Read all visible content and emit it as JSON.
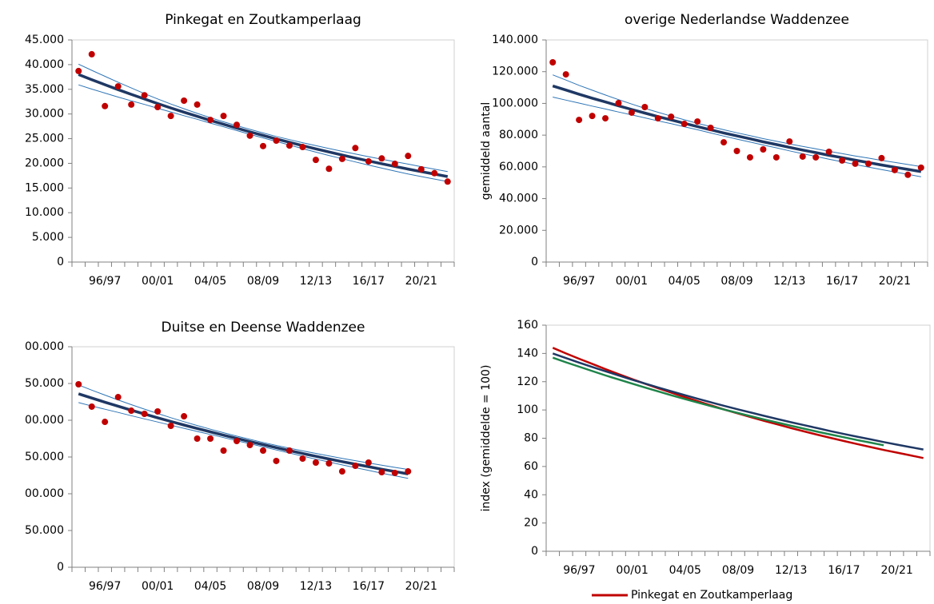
{
  "chart_data": [
    {
      "type": "line",
      "title": "Pinkegat en Zoutkamperlaag",
      "categories": [
        null,
        null,
        "96/97",
        null,
        null,
        null,
        "00/01",
        null,
        null,
        null,
        "04/05",
        null,
        null,
        null,
        "08/09",
        null,
        null,
        null,
        "12/13",
        null,
        null,
        null,
        "16/17",
        null,
        null,
        null,
        "20/21",
        null,
        null
      ],
      "ylim": [
        0,
        45000
      ],
      "yticks": [
        0,
        {
          "value": 5000,
          "label": "5.000"
        },
        {
          "value": 10000,
          "label": "10.000"
        },
        {
          "value": 15000,
          "label": "15.000"
        },
        {
          "value": 20000,
          "label": "20.000"
        },
        {
          "value": 25000,
          "label": "25.000"
        },
        {
          "value": 30000,
          "label": "30.000"
        },
        {
          "value": 35000,
          "label": "35.000"
        },
        {
          "value": 40000,
          "label": "40.000"
        },
        {
          "value": 45000,
          "label": "45.000"
        }
      ],
      "series": [
        {
          "color": "#2e75b6",
          "line_width": 1,
          "values": [
            40100,
            38850,
            37630,
            36430,
            35270,
            34130,
            33060,
            32020,
            31060,
            30120,
            29250,
            28410,
            27640,
            26890,
            26160,
            25450,
            24810,
            24190,
            23580,
            23000,
            22430,
            21880,
            21350,
            20830,
            20330,
            19840,
            19320,
            18820,
            18320
          ]
        },
        {
          "color": "#2e75b6",
          "line_width": 1,
          "values": [
            35900,
            35050,
            34230,
            33430,
            32670,
            31930,
            31160,
            30420,
            29660,
            28920,
            28150,
            27410,
            26640,
            25890,
            25160,
            24450,
            23710,
            22990,
            22280,
            21600,
            20930,
            20280,
            19650,
            19030,
            18430,
            17840,
            17320,
            16820,
            16320
          ]
        },
        {
          "color": "#1f3864",
          "line_width": 3.5,
          "values": [
            38000,
            36950,
            35930,
            34930,
            33970,
            33030,
            32110,
            31220,
            30360,
            29520,
            28700,
            27910,
            27140,
            26390,
            25660,
            24950,
            24260,
            23590,
            22930,
            22300,
            21680,
            21080,
            20500,
            19930,
            19380,
            18840,
            18320,
            17820,
            17320
          ]
        },
        {
          "color": "#c00000",
          "mode": "markers",
          "values": [
            38700,
            42100,
            31600,
            35600,
            31900,
            33800,
            31400,
            29600,
            32700,
            31900,
            28800,
            29600,
            27800,
            25600,
            23500,
            24600,
            23600,
            23300,
            20700,
            18900,
            20900,
            23100,
            20400,
            21000,
            19900,
            21500,
            18800,
            18000,
            16300
          ]
        }
      ]
    },
    {
      "type": "line",
      "title": "overige Nederlandse Waddenzee",
      "ylabel": "gemiddeld aantal",
      "categories": [
        null,
        null,
        "96/97",
        null,
        null,
        null,
        "00/01",
        null,
        null,
        null,
        "04/05",
        null,
        null,
        null,
        "08/09",
        null,
        null,
        null,
        "12/13",
        null,
        null,
        null,
        "16/17",
        null,
        null,
        null,
        "20/21",
        null,
        null
      ],
      "ylim": [
        0,
        140000
      ],
      "yticks": [
        0,
        {
          "value": 20000,
          "label": "20.000"
        },
        {
          "value": 40000,
          "label": "40.000"
        },
        {
          "value": 60000,
          "label": "60.000"
        },
        {
          "value": 80000,
          "label": "80.000"
        },
        {
          "value": 100000,
          "label": "100.000"
        },
        {
          "value": 120000,
          "label": "120.000"
        },
        {
          "value": 140000,
          "label": "140.000"
        }
      ],
      "series": [
        {
          "color": "#2e75b6",
          "line_width": 1,
          "values": [
            118000,
            114700,
            111400,
            108300,
            105300,
            102400,
            99600,
            96900,
            94400,
            92000,
            89700,
            87400,
            85400,
            83400,
            81500,
            79700,
            77800,
            76200,
            74500,
            72900,
            71400,
            69800,
            68400,
            66900,
            65500,
            64100,
            62800,
            61500,
            60200
          ]
        },
        {
          "color": "#2e75b6",
          "line_width": 1,
          "values": [
            104000,
            102100,
            100200,
            98300,
            96500,
            94600,
            92800,
            90900,
            89000,
            87200,
            85300,
            83400,
            81400,
            79400,
            77500,
            75700,
            73800,
            72000,
            70100,
            68300,
            66600,
            64800,
            63200,
            61500,
            59900,
            58300,
            56800,
            55300,
            53800
          ]
        },
        {
          "color": "#1f3864",
          "line_width": 3.5,
          "values": [
            111000,
            108400,
            105800,
            103300,
            100900,
            98500,
            96200,
            93900,
            91700,
            89600,
            87500,
            85400,
            83400,
            81400,
            79500,
            77700,
            75800,
            74100,
            72300,
            70600,
            69000,
            67300,
            65800,
            64200,
            62700,
            61200,
            59800,
            58400,
            57000
          ]
        },
        {
          "color": "#c00000",
          "mode": "markers",
          "values": [
            125900,
            118300,
            89600,
            92100,
            90600,
            100200,
            94200,
            97700,
            90600,
            91600,
            87100,
            88600,
            84600,
            75500,
            70000,
            66000,
            71000,
            66000,
            76000,
            66500,
            66000,
            69500,
            64000,
            62000,
            62000,
            65500,
            58000,
            55000,
            59500
          ]
        }
      ]
    },
    {
      "type": "line",
      "title": "Duitse en Deense Waddenzee",
      "categories": [
        null,
        null,
        "96/97",
        null,
        null,
        null,
        "00/01",
        null,
        null,
        null,
        "04/05",
        null,
        null,
        null,
        "08/09",
        null,
        null,
        null,
        "12/13",
        null,
        null,
        null,
        "16/17",
        null,
        null,
        null,
        "20/21",
        null,
        null
      ],
      "ylim": [
        0,
        300000
      ],
      "yticks": [
        0,
        {
          "value": 50000,
          "label": "50.000"
        },
        {
          "value": 100000,
          "label": "00.000"
        },
        {
          "value": 150000,
          "label": "50.000"
        },
        {
          "value": 200000,
          "label": "00.000"
        },
        {
          "value": 250000,
          "label": "50.000"
        },
        {
          "value": 300000,
          "label": "00.000"
        }
      ],
      "series": [
        {
          "color": "#2e75b6",
          "line_width": 1,
          "values": [
            248000,
            241000,
            234200,
            227600,
            221200,
            215100,
            209200,
            203500,
            198000,
            192800,
            187800,
            183000,
            178400,
            174000,
            169800,
            165800,
            162000,
            158400,
            154900,
            151500,
            148200,
            145000,
            141900,
            138800,
            135900,
            133000,
            null,
            null,
            null
          ]
        },
        {
          "color": "#2e75b6",
          "line_width": 1,
          "values": [
            224000,
            219400,
            215000,
            210600,
            206200,
            201900,
            197600,
            193300,
            189000,
            184800,
            180600,
            176400,
            172200,
            168000,
            163800,
            159600,
            155400,
            151200,
            147100,
            143100,
            139200,
            135400,
            131700,
            128000,
            124500,
            121000,
            null,
            null,
            null
          ]
        },
        {
          "color": "#1f3864",
          "line_width": 3.5,
          "values": [
            236000,
            230200,
            224600,
            219100,
            213700,
            208500,
            203400,
            198400,
            193500,
            188800,
            184200,
            179700,
            175300,
            171000,
            166800,
            162700,
            158700,
            154800,
            151000,
            147300,
            143700,
            140200,
            136800,
            133400,
            130200,
            127000,
            null,
            null,
            null
          ]
        },
        {
          "color": "#c00000",
          "mode": "markers",
          "values": [
            248900,
            218500,
            197800,
            231500,
            213000,
            208700,
            212000,
            192400,
            205400,
            175000,
            175000,
            158700,
            171700,
            166300,
            158700,
            144600,
            158700,
            147800,
            142400,
            141300,
            130400,
            138000,
            142400,
            129300,
            128300,
            130400,
            null,
            null,
            null
          ]
        }
      ]
    },
    {
      "type": "line",
      "ylabel": "index (gemiddelde = 100)",
      "legend": "bottom",
      "categories": [
        null,
        null,
        "96/97",
        null,
        null,
        null,
        "00/01",
        null,
        null,
        null,
        "04/05",
        null,
        null,
        null,
        "08/09",
        null,
        null,
        null,
        "12/13",
        null,
        null,
        null,
        "16/17",
        null,
        null,
        null,
        "20/21",
        null,
        null
      ],
      "ylim": [
        0,
        160
      ],
      "yticks": [
        0,
        20,
        40,
        60,
        80,
        100,
        120,
        140,
        160
      ],
      "series": [
        {
          "name": "Pinkegat en Zoutkamperlaag",
          "color": "#c00000",
          "line_width": 2.5,
          "values": [
            144,
            140.0,
            136.2,
            132.5,
            128.8,
            125.3,
            121.8,
            118.5,
            115.2,
            112.1,
            109.0,
            106.0,
            103.1,
            100.2,
            97.5,
            94.8,
            92.2,
            89.7,
            87.2,
            84.8,
            82.5,
            80.2,
            78.0,
            75.9,
            73.8,
            71.7,
            69.8,
            67.9,
            66.0
          ]
        },
        {
          "color": "#1f3864",
          "line_width": 2.5,
          "values": [
            140,
            136.7,
            133.5,
            130.4,
            127.3,
            124.3,
            121.4,
            118.6,
            115.8,
            113.1,
            110.4,
            107.8,
            105.3,
            102.8,
            100.4,
            98.1,
            95.8,
            93.5,
            91.3,
            89.2,
            87.1,
            85.0,
            83.0,
            81.1,
            79.2,
            77.3,
            75.5,
            73.7,
            72.0
          ]
        },
        {
          "color": "#1e8449",
          "line_width": 2.5,
          "values": [
            137,
            133.7,
            130.6,
            127.5,
            124.4,
            121.5,
            118.6,
            115.8,
            113.0,
            110.3,
            107.7,
            105.1,
            102.6,
            100.2,
            97.8,
            95.5,
            93.2,
            91.0,
            88.8,
            86.7,
            84.6,
            82.6,
            80.7,
            78.7,
            76.9,
            75.0,
            null,
            null,
            null
          ]
        }
      ]
    }
  ]
}
